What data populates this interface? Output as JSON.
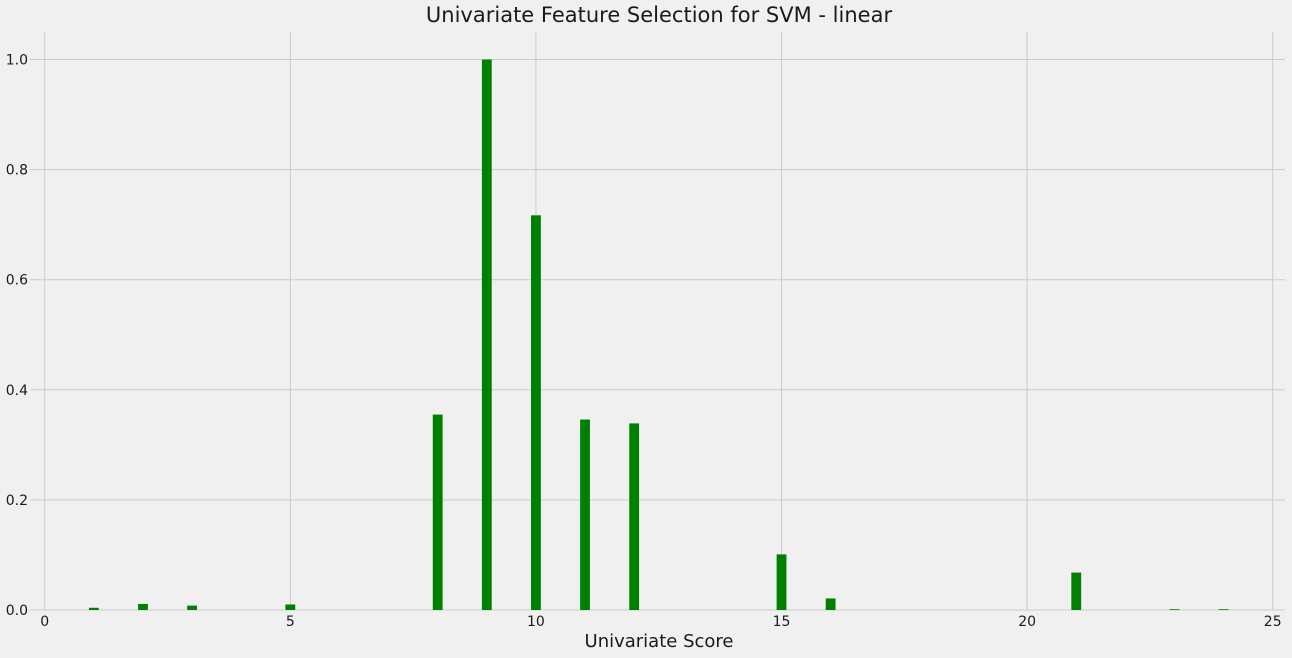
{
  "chart_data": {
    "type": "bar",
    "title": "Univariate Feature Selection for SVM - linear",
    "xlabel": "Univariate Score",
    "ylabel": "",
    "xlim": [
      -0.3,
      25.25
    ],
    "ylim": [
      0,
      1.05
    ],
    "x_ticks": [
      0,
      5,
      10,
      15,
      20,
      25
    ],
    "y_ticks": [
      0.0,
      0.2,
      0.4,
      0.6,
      0.8,
      1.0
    ],
    "grid": true,
    "bar_color": "#008000",
    "bar_width": 0.2,
    "x": [
      1,
      2,
      3,
      5,
      8,
      9,
      10,
      11,
      12,
      15,
      16,
      21,
      23,
      24
    ],
    "values": [
      0.004,
      0.011,
      0.008,
      0.01,
      0.355,
      1.0,
      0.717,
      0.346,
      0.339,
      0.101,
      0.021,
      0.068,
      0.001,
      0.001
    ]
  }
}
